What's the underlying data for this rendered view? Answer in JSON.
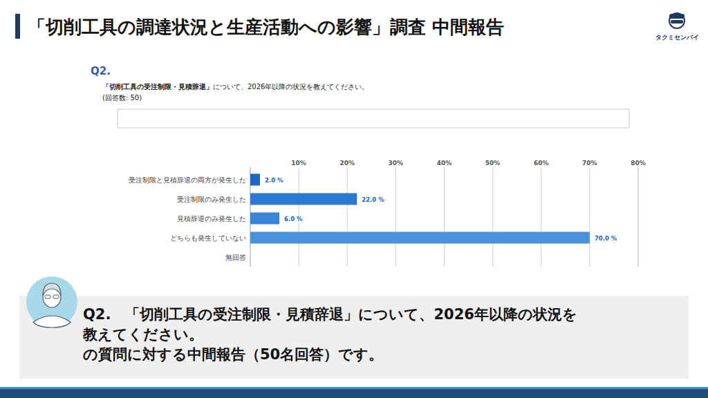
{
  "header": {
    "title": "「切削工具の調達状況と生産活動への影響」調査 中間報告",
    "logo": "タクミセンパイ"
  },
  "question": {
    "label": "Q2.",
    "text_bold": "「切削工具の受注制限・見積辞退」",
    "text_rest": "について、2026年以降の状況を教えてください。",
    "count": "(回答数: 50)"
  },
  "chart_data": {
    "type": "bar",
    "orientation": "horizontal",
    "categories": [
      "受注制限と見積辞退の両方が発生した",
      "受注制限のみ発生した",
      "見積辞退のみ発生した",
      "どちらも発生していない",
      "無回答"
    ],
    "values": [
      2.0,
      22.0,
      6.0,
      70.0,
      null
    ],
    "value_labels": [
      "2.0 %",
      "22.0 %",
      "6.0 %",
      "70.0 %",
      null
    ],
    "colors": [
      "#1a66c9",
      "#2a78d3",
      "#3b85d8",
      "#4a90dc",
      "#4a90dc"
    ],
    "xlim": [
      0,
      80
    ],
    "xticks": [
      {
        "value": 10,
        "label": "10%"
      },
      {
        "value": 20,
        "label": "20%"
      },
      {
        "value": 30,
        "label": "30%"
      },
      {
        "value": 40,
        "label": "40%"
      },
      {
        "value": 50,
        "label": "50%"
      },
      {
        "value": 60,
        "label": "60%"
      },
      {
        "value": 70,
        "label": "70%"
      },
      {
        "value": 80,
        "label": "80%"
      }
    ],
    "grid": true,
    "data_labels": true
  },
  "note": {
    "lines": [
      "Q2.　「切削工具の受注制限・見積辞退」について、2026年以降の状況を",
      "教えてください。",
      "の質問に対する中間報告（50名回答）です。"
    ]
  }
}
